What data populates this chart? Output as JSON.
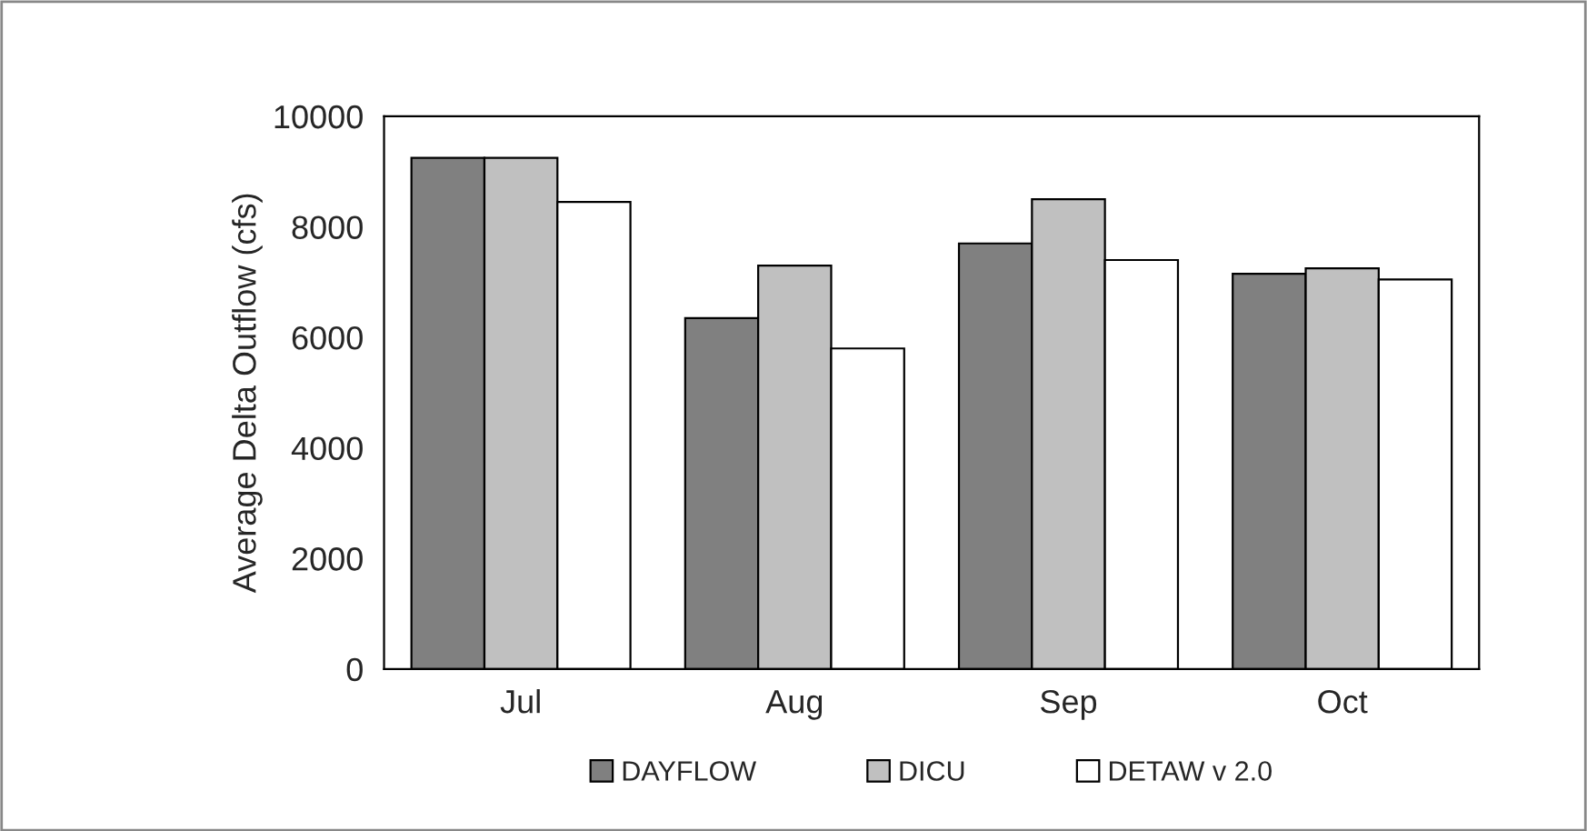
{
  "chart_data": {
    "type": "bar",
    "ylabel": "Average Delta Outflow (cfs)",
    "categories": [
      "Jul",
      "Aug",
      "Sep",
      "Oct"
    ],
    "series": [
      {
        "name": "DAYFLOW",
        "color": "#808080",
        "values": [
          9250,
          6350,
          7700,
          7150
        ]
      },
      {
        "name": "DICU",
        "color": "#c0c0c0",
        "values": [
          9250,
          7300,
          8500,
          7250
        ]
      },
      {
        "name": "DETAW v 2.0",
        "color": "#ffffff",
        "values": [
          8450,
          5800,
          7400,
          7050
        ]
      }
    ],
    "ylim": [
      0,
      10000
    ],
    "yticks": [
      0,
      2000,
      4000,
      6000,
      8000,
      10000
    ],
    "grid": false,
    "legend": "bottom"
  }
}
